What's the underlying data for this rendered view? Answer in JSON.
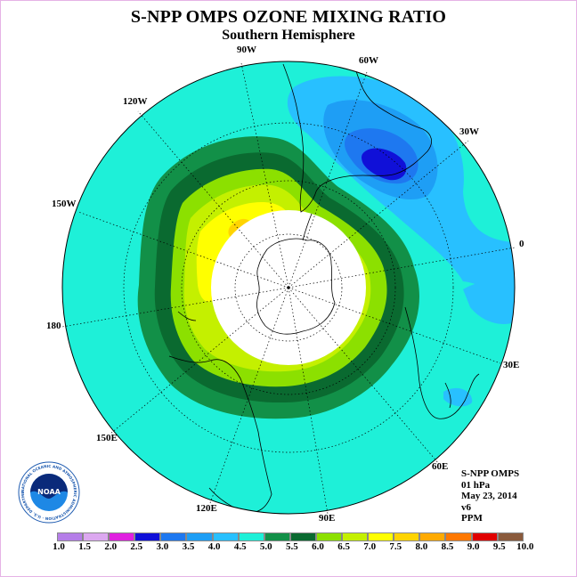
{
  "title": "S-NPP OMPS OZONE MIXING RATIO",
  "subtitle": "Southern Hemisphere",
  "longitude_labels": {
    "w90": "90W",
    "w60": "60W",
    "w30": "30W",
    "w120": "120W",
    "w150": "150W",
    "e0": "0",
    "e180": "180",
    "e30": "30E",
    "e60": "60E",
    "e90": "90E",
    "e120": "120E",
    "e150": "150E"
  },
  "info": {
    "instrument": "S-NPP OMPS",
    "level": "01 hPa",
    "date": "May 23, 2014",
    "version": "v6",
    "units": "PPM"
  },
  "logo": {
    "text": "NOAA",
    "ring_text": "NATIONAL OCEANIC AND ATMOSPHERIC ADMINISTRATION · U.S. DEPARTMENT OF COMMERCE"
  },
  "colorbar": {
    "labels": [
      "1.0",
      "1.5",
      "2.0",
      "2.5",
      "3.0",
      "3.5",
      "4.0",
      "4.5",
      "5.0",
      "5.5",
      "6.0",
      "6.5",
      "7.0",
      "7.5",
      "8.0",
      "8.5",
      "9.0",
      "9.5",
      "10.0"
    ],
    "colors": [
      "#b57ee8",
      "#dca8f0",
      "#e020e0",
      "#1010d8",
      "#1e78f0",
      "#1e9ef5",
      "#28c0ff",
      "#1ef0d8",
      "#129048",
      "#0a6a30",
      "#8ce000",
      "#c4f000",
      "#ffff00",
      "#ffd400",
      "#ffaa00",
      "#ff7800",
      "#e00000",
      "#8a5a3c"
    ]
  },
  "map_colors": {
    "background_field": "#1ef0d8",
    "polar_night": "#ffffff",
    "band_5_5": "#129048",
    "band_6_0": "#0a6a30",
    "band_6_5": "#8ce000",
    "band_7_0": "#c4f000",
    "band_7_5": "#ffff00",
    "band_8_0": "#ffd400",
    "band_4_0": "#28c0ff",
    "band_3_5": "#1e9ef5",
    "band_3_0": "#1e78f0",
    "band_2_5": "#1010d8"
  }
}
